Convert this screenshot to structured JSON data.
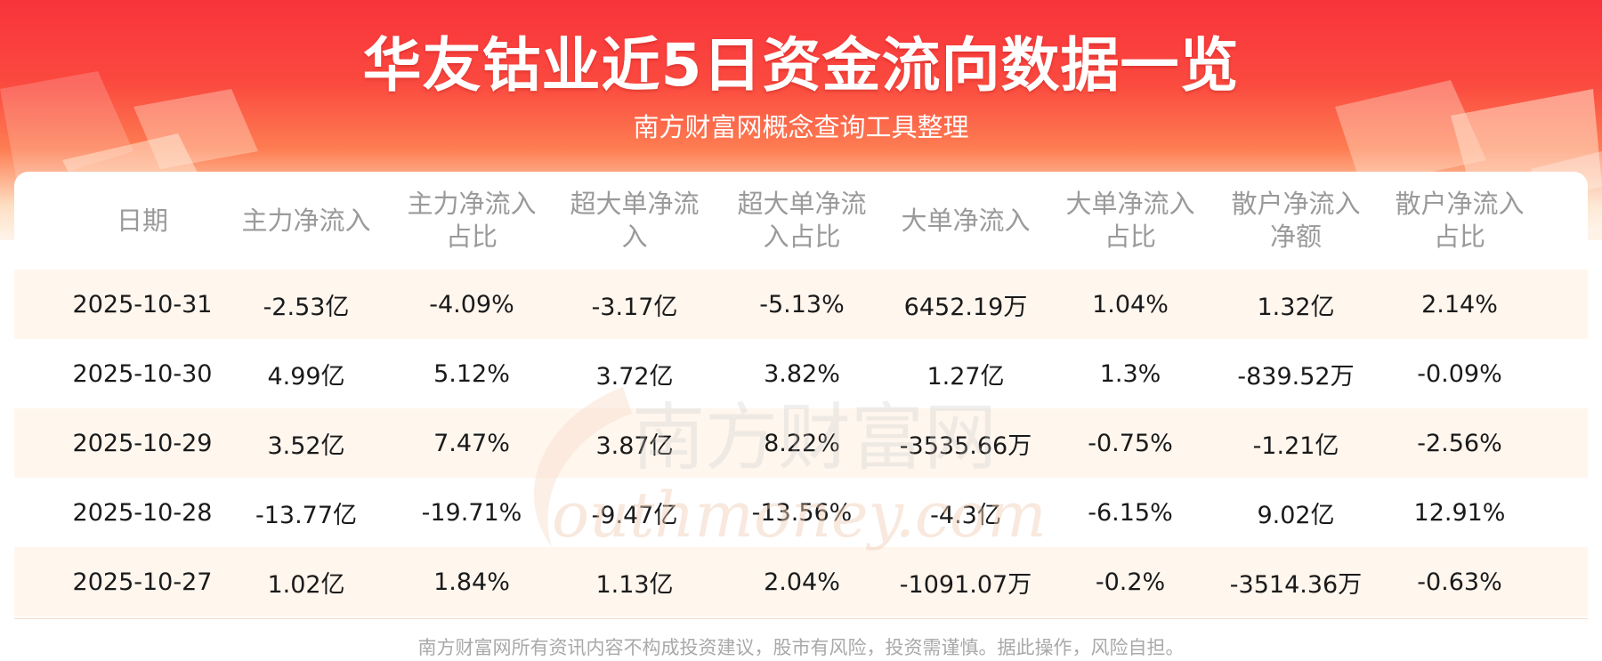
{
  "header": {
    "title": "华友钴业近5日资金流向数据一览",
    "subtitle": "南方财富网概念查询工具整理"
  },
  "table": {
    "columns": [
      [
        "日期"
      ],
      [
        "主力净流入"
      ],
      [
        "主力净流入",
        "占比"
      ],
      [
        "超大单净流",
        "入"
      ],
      [
        "超大单净流",
        "入占比"
      ],
      [
        "大单净流入"
      ],
      [
        "大单净流入",
        "占比"
      ],
      [
        "散户净流入",
        "净额"
      ],
      [
        "散户净流入",
        "占比"
      ]
    ],
    "rows": [
      [
        "2025-10-31",
        "-2.53亿",
        "-4.09%",
        "-3.17亿",
        "-5.13%",
        "6452.19万",
        "1.04%",
        "1.32亿",
        "2.14%"
      ],
      [
        "2025-10-30",
        "4.99亿",
        "5.12%",
        "3.72亿",
        "3.82%",
        "1.27亿",
        "1.3%",
        "-839.52万",
        "-0.09%"
      ],
      [
        "2025-10-29",
        "3.52亿",
        "7.47%",
        "3.87亿",
        "8.22%",
        "-3535.66万",
        "-0.75%",
        "-1.21亿",
        "-2.56%"
      ],
      [
        "2025-10-28",
        "-13.77亿",
        "-19.71%",
        "-9.47亿",
        "-13.56%",
        "-4.3亿",
        "-6.15%",
        "9.02亿",
        "12.91%"
      ],
      [
        "2025-10-27",
        "1.02亿",
        "1.84%",
        "1.13亿",
        "2.04%",
        "-1091.07万",
        "-0.2%",
        "-3514.36万",
        "-0.63%"
      ]
    ]
  },
  "watermark": {
    "cn": "南方财富网",
    "en": "outhmoney.com"
  },
  "footer": {
    "disclaimer": "南方财富网所有资讯内容不构成投资建议，股市有风险，投资需谨慎。据此操作，风险自担。"
  },
  "colors": {
    "banner_top": "#f8333b",
    "row_shade": "#fff6ee",
    "header_text": "#9a9a9a",
    "cell_text": "#1a1a1a"
  }
}
